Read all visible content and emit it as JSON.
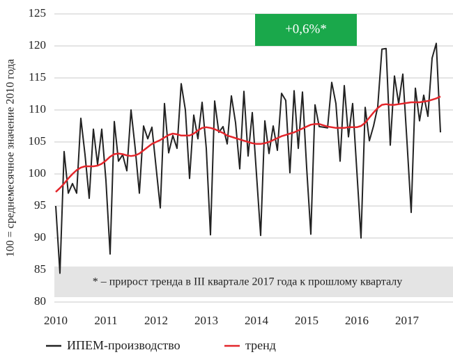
{
  "chart_data": {
    "type": "line",
    "ylabel": "100 = среднемесячное значение 2010 года",
    "annotation": "+0,6%*",
    "footnote": "* – прирост тренда в III квартале 2017 года к прошлому кварталу",
    "categories": [
      "2010",
      null,
      null,
      null,
      null,
      null,
      null,
      null,
      null,
      null,
      null,
      null,
      "2011",
      null,
      null,
      null,
      null,
      null,
      null,
      null,
      null,
      null,
      null,
      null,
      "2012",
      null,
      null,
      null,
      null,
      null,
      null,
      null,
      null,
      null,
      null,
      null,
      "2013",
      null,
      null,
      null,
      null,
      null,
      null,
      null,
      null,
      null,
      null,
      null,
      "2014",
      null,
      null,
      null,
      null,
      null,
      null,
      null,
      null,
      null,
      null,
      null,
      "2015",
      null,
      null,
      null,
      null,
      null,
      null,
      null,
      null,
      null,
      null,
      null,
      "2016",
      null,
      null,
      null,
      null,
      null,
      null,
      null,
      null,
      null,
      null,
      null,
      "2017",
      null,
      null,
      null,
      null,
      null,
      null,
      null,
      null
    ],
    "series": [
      {
        "name": "ИПЕМ-производство",
        "color": "#222222",
        "values": [
          95,
          84.5,
          103.5,
          97,
          98.5,
          97,
          108.7,
          103,
          96.2,
          107,
          101.5,
          107,
          99,
          87.5,
          108.2,
          102,
          103,
          100.5,
          110,
          104,
          97,
          107.5,
          105.5,
          107.3,
          101,
          94.7,
          111,
          103.3,
          106,
          104,
          114.1,
          110,
          99.3,
          109.2,
          105.5,
          111.2,
          104,
          90.5,
          111.4,
          106.5,
          107.4,
          104.7,
          112.2,
          108,
          100.8,
          112.9,
          102.8,
          109.6,
          100,
          90.4,
          108.3,
          103.2,
          107.5,
          103.7,
          112.6,
          111.5,
          100.2,
          113,
          104,
          112.8,
          101,
          90.6,
          110.8,
          107.4,
          107.3,
          107.2,
          114.3,
          111,
          102,
          113.8,
          105.8,
          111,
          100.5,
          90,
          110.4,
          105.2,
          107.5,
          110.5,
          119.5,
          119.6,
          104.5,
          115.3,
          111,
          115.6,
          105,
          94,
          113.4,
          108.3,
          112.3,
          109,
          118.1,
          120.4,
          106.5
        ]
      },
      {
        "name": "тренд",
        "color": "#e3262b",
        "values": [
          97.2,
          97.8,
          98.5,
          99.3,
          100.0,
          100.6,
          101.0,
          101.2,
          101.2,
          101.2,
          101.3,
          101.6,
          102.1,
          102.7,
          103.1,
          103.2,
          103.1,
          102.9,
          102.8,
          102.9,
          103.2,
          103.7,
          104.2,
          104.7,
          105.0,
          105.3,
          105.7,
          106.1,
          106.3,
          106.2,
          106.0,
          106.0,
          106.0,
          106.3,
          106.8,
          107.2,
          107.3,
          107.2,
          107.0,
          106.7,
          106.4,
          106.0,
          105.8,
          105.6,
          105.4,
          105.2,
          105.0,
          104.8,
          104.7,
          104.7,
          104.8,
          105.0,
          105.3,
          105.6,
          105.9,
          106.1,
          106.3,
          106.5,
          106.8,
          107.1,
          107.4,
          107.7,
          107.8,
          107.8,
          107.6,
          107.4,
          107.3,
          107.2,
          107.2,
          107.2,
          107.3,
          107.3,
          107.3,
          107.5,
          108.0,
          108.8,
          109.6,
          110.3,
          110.8,
          110.9,
          110.8,
          110.8,
          110.9,
          111.0,
          111.1,
          111.2,
          111.2,
          111.2,
          111.3,
          111.4,
          111.6,
          111.8,
          112.1
        ]
      }
    ],
    "ylim": [
      80,
      125
    ],
    "yticks": [
      80,
      85,
      90,
      95,
      100,
      105,
      110,
      115,
      120,
      125
    ],
    "grid": true
  }
}
